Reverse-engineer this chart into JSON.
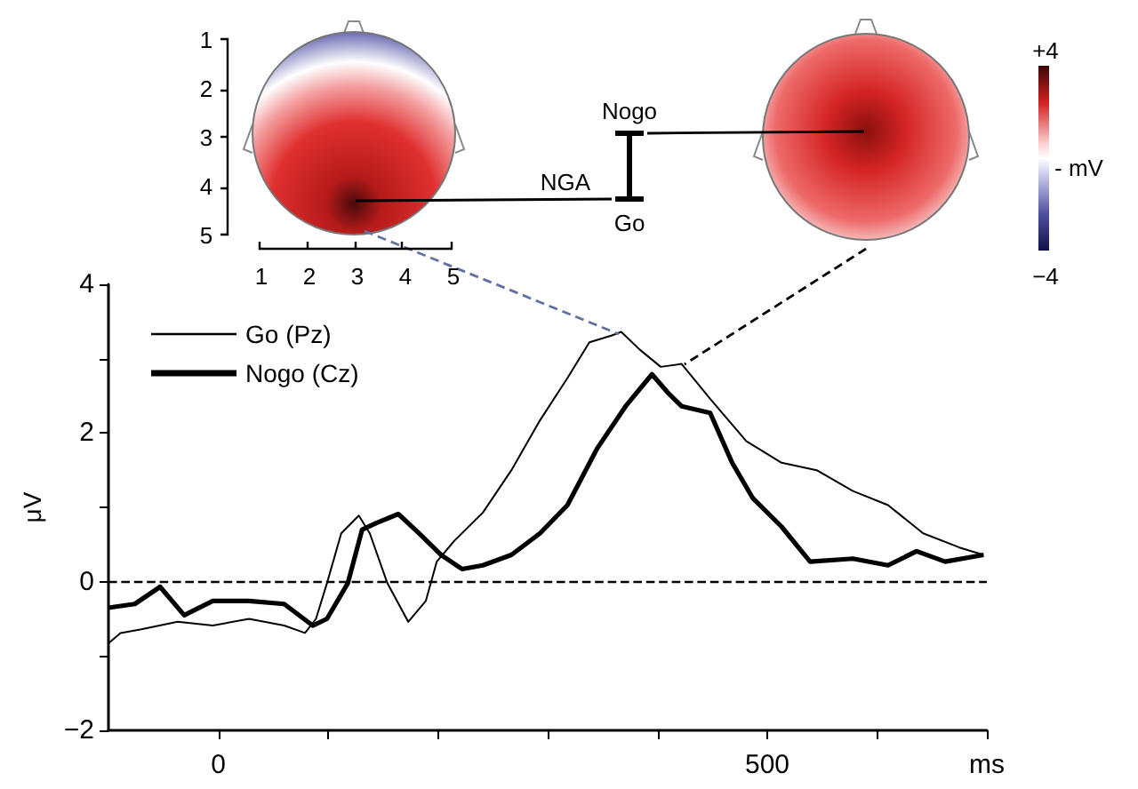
{
  "chart_data": {
    "type": "line",
    "ylabel": "μV",
    "xlim": [
      -100,
      700
    ],
    "xticks": [
      {
        "value": 0,
        "label": "0"
      },
      {
        "value": 100,
        "label": null
      },
      {
        "value": 200,
        "label": null
      },
      {
        "value": 300,
        "label": null
      },
      {
        "value": 400,
        "label": null
      },
      {
        "value": 500,
        "label": "500"
      },
      {
        "value": 600,
        "label": null
      },
      {
        "value": 700,
        "label": "ms"
      }
    ],
    "ylim": [
      -2,
      4
    ],
    "yticks": [
      {
        "value": -2,
        "label": "−2"
      },
      {
        "value": -1,
        "label": null
      },
      0,
      {
        "value": 1,
        "label": null
      },
      2,
      {
        "value": 3,
        "label": null
      },
      4
    ],
    "series": [
      {
        "name": "Go (Pz)",
        "color": "#000000",
        "x": [
          -100,
          -89,
          -70,
          -37,
          -5,
          28,
          60,
          79,
          89,
          99,
          112,
          128,
          138,
          154,
          173,
          189,
          199,
          215,
          241,
          267,
          293,
          318,
          338,
          358,
          367,
          384,
          403,
          422,
          448,
          481,
          513,
          545,
          578,
          610,
          642,
          675,
          697
        ],
        "values": [
          -0.83,
          -0.69,
          -0.64,
          -0.54,
          -0.59,
          -0.5,
          -0.59,
          -0.69,
          -0.5,
          -0.02,
          0.65,
          0.89,
          0.65,
          -0.02,
          -0.54,
          -0.26,
          0.27,
          0.55,
          0.93,
          1.5,
          2.17,
          2.74,
          3.22,
          3.31,
          3.36,
          3.12,
          2.89,
          2.93,
          2.46,
          1.89,
          1.6,
          1.5,
          1.22,
          1.03,
          0.65,
          0.46,
          0.36
        ]
      },
      {
        "name": "Nogo (Cz)",
        "color": "#000000",
        "x": [
          -100,
          -76,
          -53,
          -31,
          -5,
          28,
          60,
          86,
          99,
          118,
          131,
          144,
          164,
          183,
          203,
          222,
          241,
          267,
          293,
          318,
          345,
          371,
          395,
          409,
          422,
          448,
          468,
          487,
          513,
          539,
          578,
          610,
          636,
          662,
          697
        ],
        "values": [
          -0.35,
          -0.3,
          -0.07,
          -0.45,
          -0.26,
          -0.26,
          -0.3,
          -0.59,
          -0.5,
          -0.02,
          0.7,
          0.79,
          0.91,
          0.65,
          0.36,
          0.17,
          0.22,
          0.36,
          0.65,
          1.03,
          1.79,
          2.36,
          2.79,
          2.55,
          2.36,
          2.27,
          1.6,
          1.12,
          0.74,
          0.27,
          0.31,
          0.22,
          0.41,
          0.27,
          0.36
        ]
      }
    ],
    "ref_lines": [
      {
        "axis": "y",
        "value": 0,
        "label": null,
        "color": "#000000",
        "line_style": "dashed"
      }
    ],
    "legend": "top left",
    "grid": false,
    "annotations": [
      "Nogo",
      "NGA",
      "Go",
      "+4",
      "- mV",
      "−4",
      "1",
      "2",
      "3",
      "4",
      "5"
    ]
  }
}
